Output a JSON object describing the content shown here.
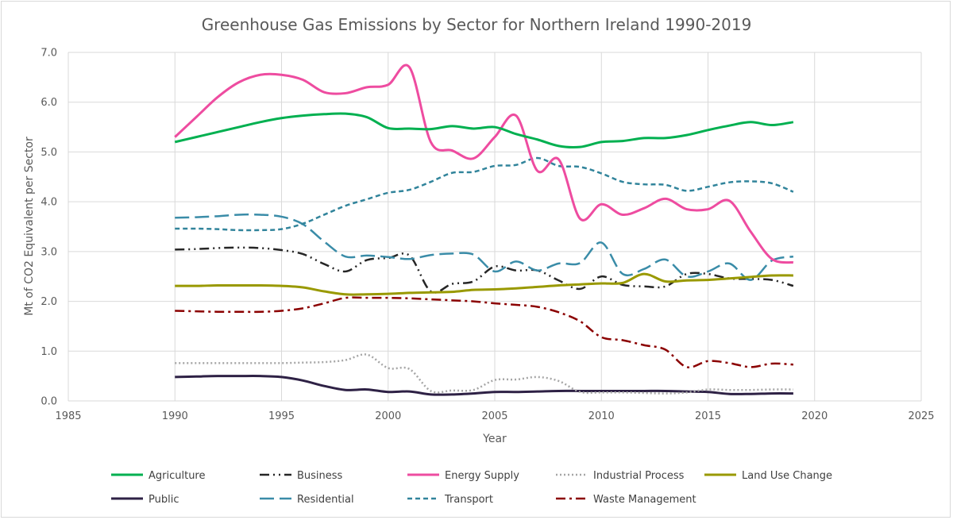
{
  "chart_data": {
    "type": "line",
    "title": "Greenhouse Gas Emissions by Sector for Northern Ireland 1990-2019",
    "xlabel": "Year",
    "ylabel": "Mt of CO2 Equivalent per Sector",
    "xlim": [
      1985,
      2025
    ],
    "ylim": [
      0,
      7
    ],
    "xticks": [
      1985,
      1990,
      1995,
      2000,
      2005,
      2010,
      2015,
      2020,
      2025
    ],
    "yticks": [
      "0.0",
      "1.0",
      "2.0",
      "3.0",
      "4.0",
      "5.0",
      "6.0",
      "7.0"
    ],
    "grid": true,
    "legend_position": "bottom",
    "x": [
      1990,
      1991,
      1992,
      1993,
      1994,
      1995,
      1996,
      1997,
      1998,
      1999,
      2000,
      2001,
      2002,
      2003,
      2004,
      2005,
      2006,
      2007,
      2008,
      2009,
      2010,
      2011,
      2012,
      2013,
      2014,
      2015,
      2016,
      2017,
      2018,
      2019
    ],
    "series": [
      {
        "name": "Agriculture",
        "color": "#00b050",
        "dash": "solid",
        "values": [
          5.2,
          5.3,
          5.4,
          5.5,
          5.6,
          5.68,
          5.73,
          5.76,
          5.77,
          5.7,
          5.48,
          5.47,
          5.46,
          5.52,
          5.47,
          5.5,
          5.36,
          5.25,
          5.12,
          5.1,
          5.2,
          5.22,
          5.28,
          5.28,
          5.34,
          5.44,
          5.53,
          5.6,
          5.54,
          5.6
        ]
      },
      {
        "name": "Business",
        "color": "#262626",
        "dash": "dashdotdot",
        "values": [
          3.04,
          3.05,
          3.07,
          3.08,
          3.07,
          3.03,
          2.95,
          2.75,
          2.6,
          2.83,
          2.87,
          2.92,
          2.2,
          2.35,
          2.4,
          2.7,
          2.62,
          2.62,
          2.42,
          2.25,
          2.5,
          2.33,
          2.3,
          2.3,
          2.55,
          2.55,
          2.46,
          2.45,
          2.43,
          2.31
        ]
      },
      {
        "name": "Energy Supply",
        "color": "#ee4ca0",
        "dash": "solid",
        "values": [
          5.3,
          5.7,
          6.1,
          6.4,
          6.55,
          6.55,
          6.45,
          6.2,
          6.18,
          6.3,
          6.35,
          6.7,
          5.2,
          5.03,
          4.87,
          5.3,
          5.73,
          4.62,
          4.85,
          3.66,
          3.95,
          3.74,
          3.87,
          4.06,
          3.85,
          3.85,
          4.02,
          3.4,
          2.85,
          2.78
        ]
      },
      {
        "name": "Industrial Process",
        "color": "#a6a6a6",
        "dash": "dot",
        "values": [
          0.76,
          0.76,
          0.76,
          0.76,
          0.76,
          0.76,
          0.77,
          0.78,
          0.82,
          0.93,
          0.66,
          0.64,
          0.2,
          0.21,
          0.22,
          0.42,
          0.43,
          0.48,
          0.4,
          0.18,
          0.17,
          0.17,
          0.16,
          0.15,
          0.17,
          0.23,
          0.22,
          0.22,
          0.23,
          0.23
        ]
      },
      {
        "name": "Land Use Change",
        "color": "#999900",
        "dash": "solid",
        "values": [
          2.31,
          2.31,
          2.32,
          2.32,
          2.32,
          2.31,
          2.28,
          2.2,
          2.14,
          2.14,
          2.15,
          2.17,
          2.18,
          2.19,
          2.23,
          2.24,
          2.26,
          2.29,
          2.32,
          2.34,
          2.36,
          2.37,
          2.55,
          2.4,
          2.42,
          2.43,
          2.46,
          2.49,
          2.52,
          2.52
        ]
      },
      {
        "name": "Public",
        "color": "#2e2145",
        "dash": "solid",
        "values": [
          0.48,
          0.49,
          0.5,
          0.5,
          0.5,
          0.48,
          0.41,
          0.3,
          0.22,
          0.23,
          0.18,
          0.19,
          0.13,
          0.13,
          0.15,
          0.18,
          0.18,
          0.19,
          0.2,
          0.2,
          0.2,
          0.2,
          0.2,
          0.2,
          0.19,
          0.18,
          0.14,
          0.14,
          0.15,
          0.15
        ]
      },
      {
        "name": "Residential",
        "color": "#3a8ca8",
        "dash": "longdash",
        "values": [
          3.68,
          3.69,
          3.71,
          3.74,
          3.74,
          3.7,
          3.55,
          3.2,
          2.9,
          2.92,
          2.89,
          2.85,
          2.93,
          2.96,
          2.94,
          2.6,
          2.8,
          2.62,
          2.76,
          2.77,
          3.18,
          2.55,
          2.65,
          2.84,
          2.5,
          2.6,
          2.76,
          2.43,
          2.82,
          2.9
        ]
      },
      {
        "name": "Transport",
        "color": "#31849b",
        "dash": "shortdash",
        "values": [
          3.46,
          3.46,
          3.45,
          3.43,
          3.43,
          3.45,
          3.56,
          3.74,
          3.92,
          4.05,
          4.18,
          4.24,
          4.4,
          4.58,
          4.6,
          4.72,
          4.74,
          4.88,
          4.72,
          4.7,
          4.57,
          4.4,
          4.35,
          4.34,
          4.22,
          4.3,
          4.39,
          4.41,
          4.37,
          4.2
        ]
      },
      {
        "name": "Waste Management",
        "color": "#8b0000",
        "dash": "dashdot",
        "values": [
          1.81,
          1.8,
          1.79,
          1.79,
          1.79,
          1.81,
          1.86,
          1.96,
          2.07,
          2.07,
          2.07,
          2.06,
          2.04,
          2.02,
          2.0,
          1.96,
          1.93,
          1.89,
          1.78,
          1.6,
          1.28,
          1.22,
          1.12,
          1.03,
          0.68,
          0.8,
          0.76,
          0.68,
          0.75,
          0.73
        ]
      }
    ]
  }
}
